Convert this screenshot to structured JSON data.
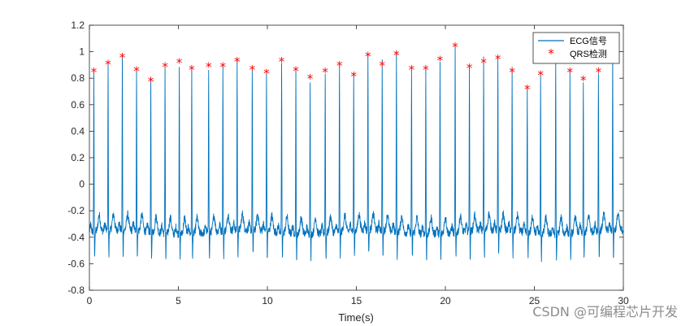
{
  "chart_data": {
    "type": "line",
    "xlabel": "Time(s)",
    "ylabel": "",
    "title": "",
    "xlim": [
      0,
      30
    ],
    "ylim": [
      -0.8,
      1.2
    ],
    "xticks": [
      0,
      5,
      10,
      15,
      20,
      25,
      30
    ],
    "xtick_labels": [
      "0",
      "5",
      "10",
      "15",
      "20",
      "25",
      "30"
    ],
    "yticks": [
      -0.8,
      -0.6,
      -0.4,
      -0.2,
      0,
      0.2,
      0.4,
      0.6,
      0.8,
      1,
      1.2
    ],
    "ytick_labels": [
      "-0.8",
      "-0.6",
      "-0.4",
      "-0.2",
      "0",
      "0.2",
      "0.4",
      "0.6",
      "0.8",
      "1",
      "1.2"
    ],
    "grid": false,
    "legend_position": "top-right",
    "series": [
      {
        "name": "ECG信号",
        "kind": "line",
        "color": "#0072BD",
        "baseline": -0.36,
        "baseline_noise": 0.06,
        "t_wave_height": 0.12,
        "s_wave_min": -0.6,
        "peak_times": [
          0.25,
          1.05,
          1.85,
          2.65,
          3.45,
          4.25,
          5.05,
          5.75,
          6.7,
          7.5,
          8.3,
          9.15,
          9.95,
          10.8,
          11.6,
          12.4,
          13.25,
          14.05,
          14.85,
          15.65,
          16.45,
          17.25,
          18.1,
          18.9,
          19.7,
          20.55,
          21.35,
          22.15,
          22.95,
          23.75,
          24.6,
          25.35,
          26.2,
          27.0,
          27.75,
          28.6,
          29.4
        ],
        "peak_values": [
          0.85,
          0.91,
          0.96,
          0.86,
          0.78,
          0.89,
          0.92,
          0.87,
          0.89,
          0.89,
          0.93,
          0.87,
          0.84,
          0.93,
          0.86,
          0.8,
          0.85,
          0.9,
          0.82,
          0.97,
          0.9,
          0.98,
          0.87,
          0.87,
          0.94,
          1.04,
          0.88,
          0.92,
          0.95,
          0.85,
          0.72,
          0.83,
          0.95,
          0.85,
          0.79,
          0.85,
          0.96
        ]
      },
      {
        "name": "QRS检测",
        "kind": "marker",
        "marker": "*",
        "color": "#FF0000"
      }
    ]
  },
  "watermark": "CSDN @可编程芯片开发"
}
